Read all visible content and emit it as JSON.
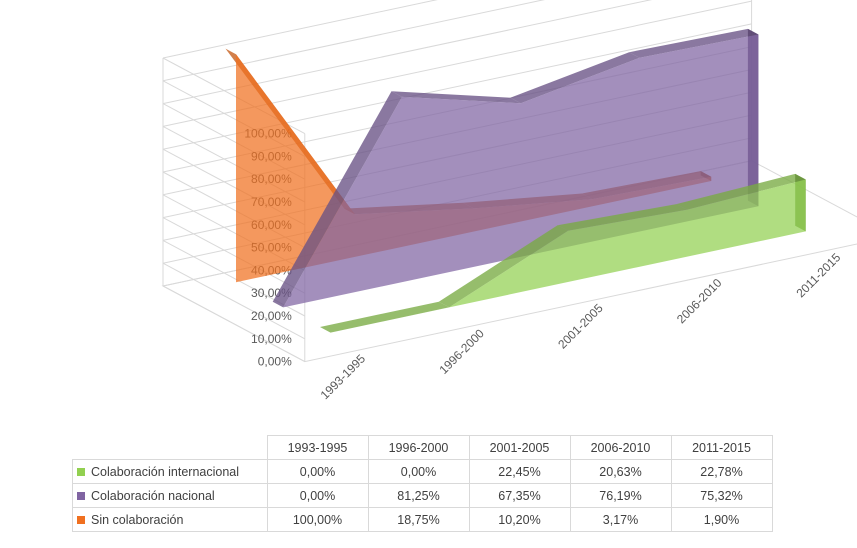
{
  "chart_data": {
    "type": "area",
    "three_d": true,
    "categories": [
      "1993-1995",
      "1996-2000",
      "2001-2005",
      "2006-2010",
      "2011-2015"
    ],
    "yticks": [
      "0,00%",
      "10,00%",
      "20,00%",
      "30,00%",
      "40,00%",
      "50,00%",
      "60,00%",
      "70,00%",
      "80,00%",
      "90,00%",
      "100,00%"
    ],
    "ylim": [
      0,
      100
    ],
    "grid": true,
    "legend": "data-table",
    "series": [
      {
        "name": "Colaboración internacional",
        "color": "#92d050",
        "values": [
          0.0,
          0.0,
          22.45,
          20.63,
          22.78
        ],
        "labels": [
          "0,00%",
          "0,00%",
          "22,45%",
          "20,63%",
          "22,78%"
        ]
      },
      {
        "name": "Colaboración nacional",
        "color": "#8064a2",
        "values": [
          0.0,
          81.25,
          67.35,
          76.19,
          75.32
        ],
        "labels": [
          "0,00%",
          "81,25%",
          "67,35%",
          "76,19%",
          "75,32%"
        ]
      },
      {
        "name": "Sin colaboración",
        "color": "#f07020",
        "values": [
          100.0,
          18.75,
          10.2,
          3.17,
          1.9
        ],
        "labels": [
          "100,00%",
          "18,75%",
          "10,20%",
          "3,17%",
          "1,90%"
        ]
      }
    ]
  }
}
